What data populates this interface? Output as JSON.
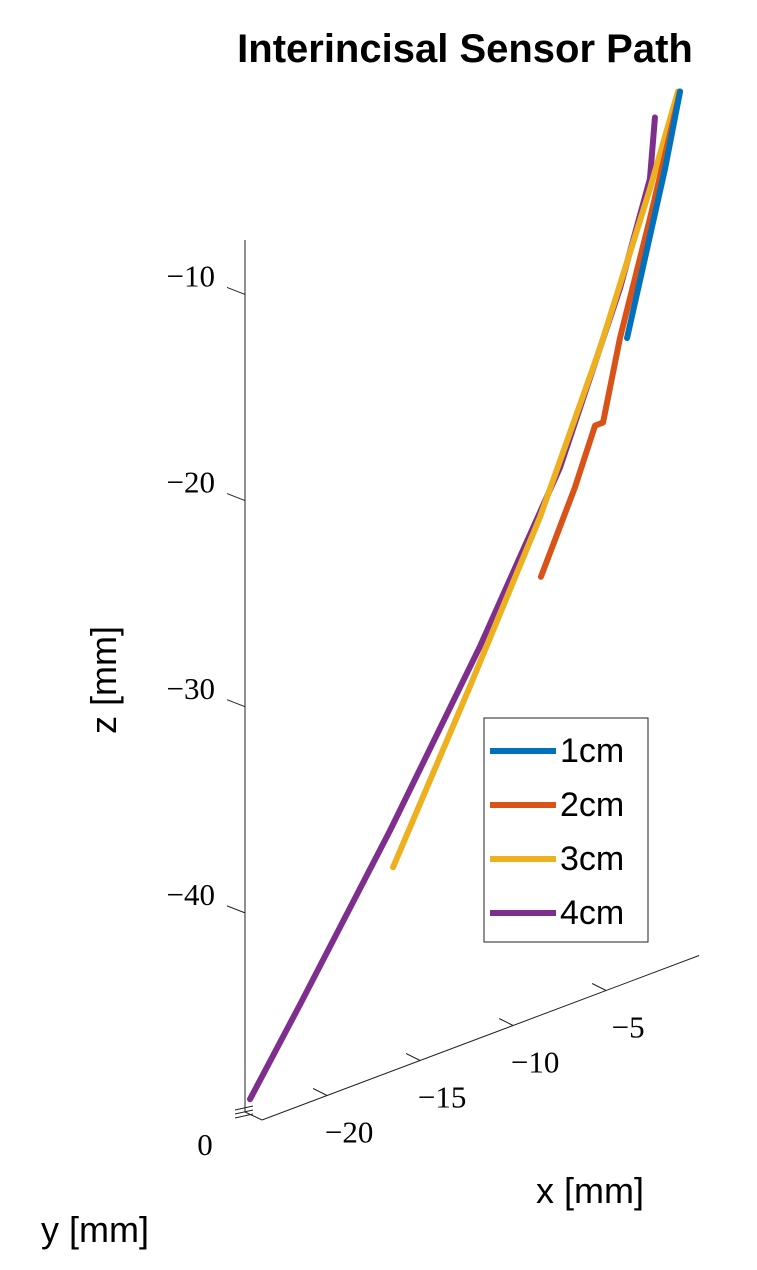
{
  "chart_data": {
    "type": "line3d",
    "title": "Interincisal Sensor Path",
    "x_label": "x [mm]",
    "y_label": "y [mm]",
    "z_label": "z [mm]",
    "xlim": [
      -23.5,
      0
    ],
    "zlim": [
      -50,
      -7.7
    ],
    "xticks": [
      {
        "value": -20,
        "label": "−20"
      },
      {
        "value": -15,
        "label": "−15"
      },
      {
        "value": -10,
        "label": "−10"
      },
      {
        "value": -5,
        "label": "−5"
      }
    ],
    "yticks": [
      0
    ],
    "zticks": [
      {
        "value": -10,
        "label": "−10"
      },
      {
        "value": -20,
        "label": "−20"
      },
      {
        "value": -30,
        "label": "−30"
      },
      {
        "value": -40,
        "label": "−40"
      }
    ],
    "legend": "right",
    "series": [
      {
        "name": "1cm",
        "color": "#0072bd",
        "x": [
          -2.96,
          -2.0,
          -0.92,
          -0.11
        ],
        "z": [
          -19.43,
          -15.9,
          -11.92,
          -8.44
        ]
      },
      {
        "name": "2cm",
        "color": "#d95319",
        "x": [
          -7.59,
          -5.76,
          -4.68,
          -4.25,
          -3.34,
          -1.73,
          -0.11
        ],
        "z": [
          -29.44,
          -25.72,
          -23.09,
          -23.09,
          -19.3,
          -14.06,
          -8.44
        ]
      },
      {
        "name": "3cm",
        "color": "#edb120",
        "x": [
          -15.54,
          -11.4,
          -7.64,
          -4.41,
          -1.73,
          -0.22
        ],
        "z": [
          -40.83,
          -33.45,
          -26.53,
          -19.42,
          -12.62,
          -8.4
        ]
      },
      {
        "name": "4cm",
        "color": "#7e2f8e",
        "x": [
          -23.23,
          -20.54,
          -15.7,
          -10.87,
          -6.56,
          -3.34,
          -1.73,
          -1.46
        ],
        "z": [
          -49.47,
          -45.79,
          -38.99,
          -31.71,
          -24.48,
          -16.89,
          -12.13,
          -9.24
        ]
      }
    ]
  }
}
